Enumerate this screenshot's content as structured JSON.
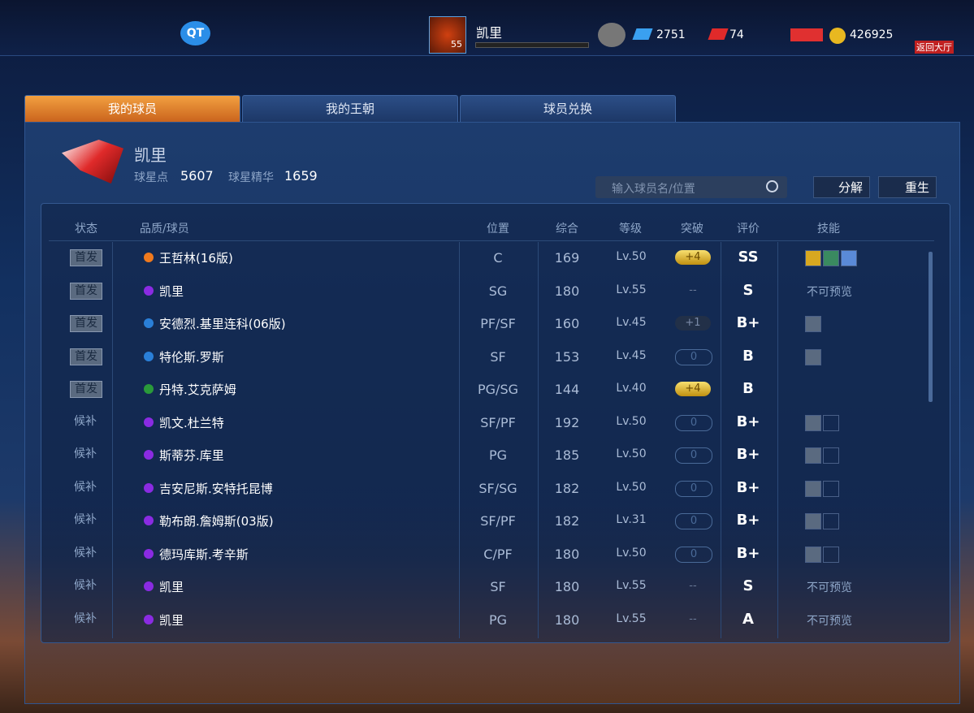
{
  "top_bar": {
    "logo": "QT",
    "player_name": "凯里",
    "level": 55,
    "diamonds": 2751,
    "tickets": 74,
    "coins": 426925,
    "back": "返回大厅"
  },
  "tabs": [
    "我的球员",
    "我的王朝",
    "球员兑换"
  ],
  "profile": {
    "name": "凯里",
    "points_label": "球星点",
    "points": 5607,
    "essence_label": "球星精华",
    "essence": 1659
  },
  "search_placeholder": "输入球员名/位置",
  "buttons": [
    "分解",
    "重生"
  ],
  "table": {
    "headers": [
      "状态",
      "品质/球员",
      "位置",
      "综合",
      "等级",
      "突破",
      "评价",
      "技能"
    ],
    "rows": [
      {
        "status": "首发",
        "color": "#f07a1e",
        "name": "王哲林(16版)",
        "position": "C",
        "overall": 169,
        "level": "Lv.50",
        "breakthrough": "+4",
        "rating": "SS",
        "skills": [
          "gold",
          "green",
          "blue"
        ]
      },
      {
        "status": "首发",
        "color": "#8a2be2",
        "name": "凯里",
        "position": "SG",
        "overall": 180,
        "level": "Lv.55",
        "breakthrough": "--",
        "rating": "S",
        "skills": "不可预览"
      },
      {
        "status": "首发",
        "color": "#2a7fd8",
        "name": "安德烈.基里连科(06版)",
        "position": "PF/SF",
        "overall": 160,
        "level": "Lv.45",
        "breakthrough": "+1",
        "rating": "B+",
        "skills": [
          "lock"
        ]
      },
      {
        "status": "首发",
        "color": "#2a7fd8",
        "name": "特伦斯.罗斯",
        "position": "SF",
        "overall": 153,
        "level": "Lv.45",
        "breakthrough": "0",
        "rating": "B",
        "skills": [
          "lock"
        ]
      },
      {
        "status": "首发",
        "color": "#2a9a3a",
        "name": "丹特.艾克萨姆",
        "position": "PG/SG",
        "overall": 144,
        "level": "Lv.40",
        "breakthrough": "+4",
        "rating": "B",
        "skills": []
      },
      {
        "status": "候补",
        "color": "#8a2be2",
        "name": "凯文.杜兰特",
        "position": "SF/PF",
        "overall": 192,
        "level": "Lv.50",
        "breakthrough": "0",
        "rating": "B+",
        "skills": [
          "lock",
          "empty"
        ]
      },
      {
        "status": "候补",
        "color": "#8a2be2",
        "name": "斯蒂芬.库里",
        "position": "PG",
        "overall": 185,
        "level": "Lv.50",
        "breakthrough": "0",
        "rating": "B+",
        "skills": [
          "lock",
          "empty"
        ]
      },
      {
        "status": "候补",
        "color": "#8a2be2",
        "name": "吉安尼斯.安特托昆博",
        "position": "SF/SG",
        "overall": 182,
        "level": "Lv.50",
        "breakthrough": "0",
        "rating": "B+",
        "skills": [
          "lock",
          "empty"
        ]
      },
      {
        "status": "候补",
        "color": "#8a2be2",
        "name": "勒布朗.詹姆斯(03版)",
        "position": "SF/PF",
        "overall": 182,
        "level": "Lv.31",
        "breakthrough": "0",
        "rating": "B+",
        "skills": [
          "lock",
          "empty"
        ]
      },
      {
        "status": "候补",
        "color": "#8a2be2",
        "name": "德玛库斯.考辛斯",
        "position": "C/PF",
        "overall": 180,
        "level": "Lv.50",
        "breakthrough": "0",
        "rating": "B+",
        "skills": [
          "lock",
          "empty"
        ]
      },
      {
        "status": "候补",
        "color": "#8a2be2",
        "name": "凯里",
        "position": "SF",
        "overall": 180,
        "level": "Lv.55",
        "breakthrough": "--",
        "rating": "S",
        "skills": "不可预览"
      },
      {
        "status": "候补",
        "color": "#8a2be2",
        "name": "凯里",
        "position": "PG",
        "overall": 180,
        "level": "Lv.55",
        "breakthrough": "--",
        "rating": "A",
        "skills": "不可预览"
      }
    ]
  }
}
